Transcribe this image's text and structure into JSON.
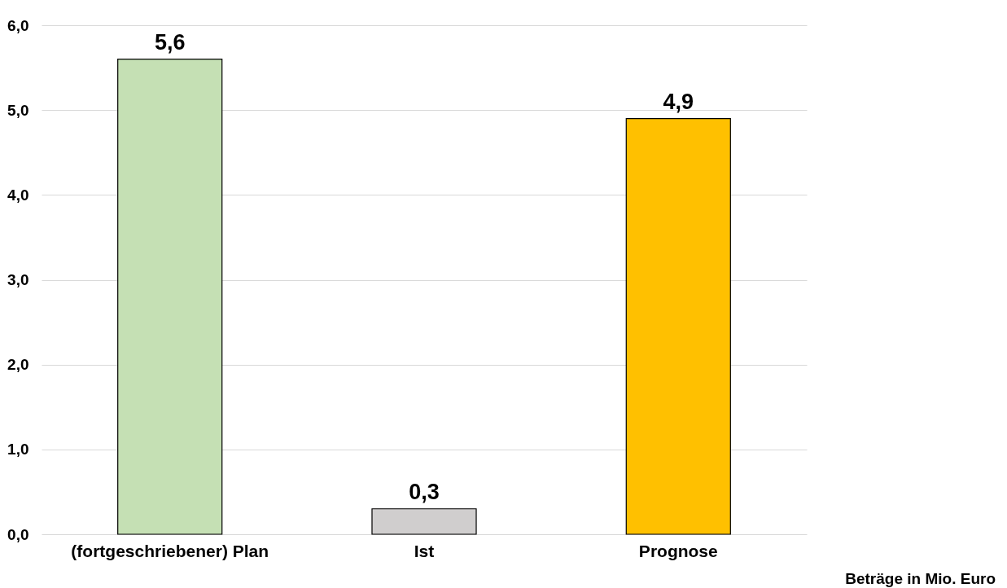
{
  "chart_data": {
    "type": "bar",
    "categories": [
      "(fortgeschriebener) Plan",
      "Ist",
      "Prognose"
    ],
    "values": [
      5.6,
      0.3,
      4.9
    ],
    "colors": [
      "#c5e0b4",
      "#d0cece",
      "#ffc000"
    ],
    "value_labels": [
      "5,6",
      "0,3",
      "4,9"
    ],
    "ylim": [
      0,
      6
    ],
    "yticks": [
      {
        "value": 0,
        "label": "0,0"
      },
      {
        "value": 1,
        "label": "1,0"
      },
      {
        "value": 2,
        "label": "2,0"
      },
      {
        "value": 3,
        "label": "3,0"
      },
      {
        "value": 4,
        "label": "4,0"
      },
      {
        "value": 5,
        "label": "5,0"
      },
      {
        "value": 6,
        "label": "6,0"
      }
    ],
    "grid": "y",
    "annotations": [
      "Beträge in Mio. Euro"
    ]
  }
}
